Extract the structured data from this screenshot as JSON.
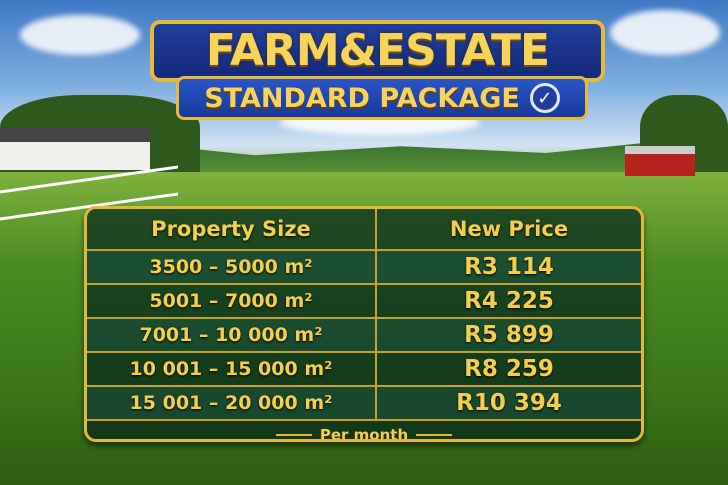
{
  "title": "FARM&ESTATE",
  "subtitle": "STANDARD PACKAGE",
  "subtitle_icon": "check-circle-icon",
  "table": {
    "headers": [
      "Property Size",
      "New Price"
    ],
    "rows": [
      {
        "size": "3500 – 5000 m²",
        "price": "R3 114"
      },
      {
        "size": "5001 – 7000 m²",
        "price": "R4 225"
      },
      {
        "size": "7001 – 10 000 m²",
        "price": "R5 899"
      },
      {
        "size": "10 001 – 15 000 m²",
        "price": "R8 259"
      },
      {
        "size": "15 001 – 20 000 m²",
        "price": "R10 394"
      }
    ],
    "footer": "Per month"
  },
  "colors": {
    "gold": "#f4cf4e",
    "banner_blue": "#1f3f9e",
    "table_green": "#16401e"
  }
}
